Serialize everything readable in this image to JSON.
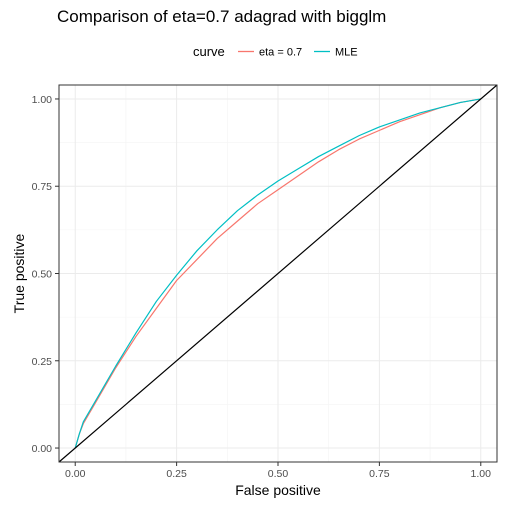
{
  "chart_data": {
    "type": "line",
    "title": "Comparison of eta=0.7 adagrad with bigglm",
    "xlabel": "False positive",
    "ylabel": "True positive",
    "xlim": [
      -0.04,
      1.04
    ],
    "ylim": [
      -0.04,
      1.04
    ],
    "xticks": [
      0,
      0.25,
      0.5,
      0.75,
      1
    ],
    "xtick_labels": [
      "0.00",
      "0.25",
      "0.50",
      "0.75",
      "1.00"
    ],
    "yticks": [
      0,
      0.25,
      0.5,
      0.75,
      1
    ],
    "ytick_labels": [
      "0.00",
      "0.25",
      "0.50",
      "0.75",
      "1.00"
    ],
    "grid": true,
    "legend": {
      "title": "curve",
      "position": "top"
    },
    "series": [
      {
        "name": "eta = 0.7",
        "color": "#F8766D",
        "x": [
          0,
          0.01,
          0.02,
          0.05,
          0.1,
          0.15,
          0.2,
          0.25,
          0.3,
          0.35,
          0.4,
          0.45,
          0.5,
          0.55,
          0.6,
          0.65,
          0.7,
          0.75,
          0.8,
          0.85,
          0.9,
          0.95,
          1
        ],
        "y": [
          0,
          0.04,
          0.07,
          0.13,
          0.23,
          0.32,
          0.4,
          0.48,
          0.54,
          0.6,
          0.65,
          0.7,
          0.74,
          0.78,
          0.82,
          0.855,
          0.885,
          0.91,
          0.935,
          0.955,
          0.975,
          0.99,
          1
        ]
      },
      {
        "name": "MLE",
        "color": "#00BFC4",
        "x": [
          0,
          0.01,
          0.02,
          0.05,
          0.1,
          0.15,
          0.2,
          0.25,
          0.3,
          0.35,
          0.4,
          0.45,
          0.5,
          0.55,
          0.6,
          0.65,
          0.7,
          0.75,
          0.8,
          0.85,
          0.9,
          0.95,
          1
        ],
        "y": [
          0,
          0.04,
          0.075,
          0.135,
          0.235,
          0.33,
          0.42,
          0.495,
          0.565,
          0.625,
          0.68,
          0.725,
          0.765,
          0.8,
          0.835,
          0.865,
          0.895,
          0.92,
          0.94,
          0.96,
          0.975,
          0.99,
          1
        ]
      }
    ],
    "reference_line": {
      "x": [
        -0.04,
        1.04
      ],
      "y": [
        -0.04,
        1.04
      ],
      "color": "#000000"
    }
  }
}
